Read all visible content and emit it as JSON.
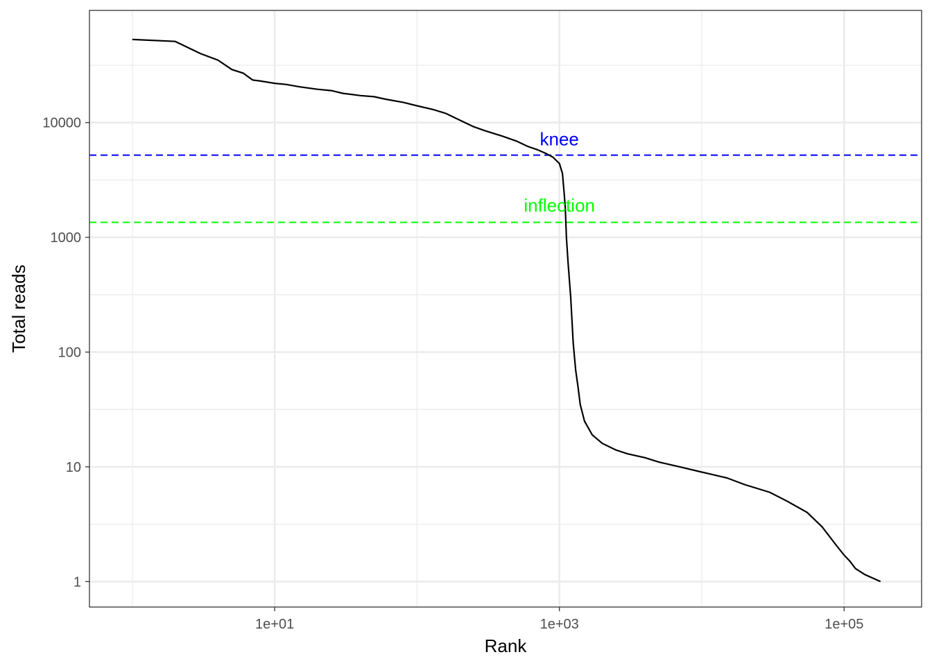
{
  "chart_data": {
    "type": "line",
    "title": "",
    "xlabel": "Rank",
    "ylabel": "Total reads",
    "x_scale": "log10",
    "y_scale": "log10",
    "xlim": [
      0.5,
      350000
    ],
    "ylim": [
      0.6,
      95000
    ],
    "x_ticks": [
      {
        "value": 10,
        "label": "1e+01"
      },
      {
        "value": 1000,
        "label": "1e+03"
      },
      {
        "value": 100000,
        "label": "1e+05"
      }
    ],
    "y_ticks": [
      {
        "value": 1,
        "label": "1"
      },
      {
        "value": 10,
        "label": "10"
      },
      {
        "value": 100,
        "label": "100"
      },
      {
        "value": 1000,
        "label": "1000"
      },
      {
        "value": 10000,
        "label": "10000"
      }
    ],
    "grid": true,
    "legend": "none",
    "colors": {
      "curve": "#000000",
      "knee": "#0000ff",
      "inflection": "#00ff00",
      "panel_border": "#333333",
      "grid": "#ebebeb"
    },
    "series": [
      {
        "x": [
          1,
          2,
          3,
          4,
          5,
          6,
          7,
          8,
          10,
          12,
          15,
          20,
          25,
          30,
          40,
          50,
          60,
          80,
          100,
          130,
          160,
          200,
          250,
          300,
          400,
          500,
          600,
          700,
          800,
          900,
          1000,
          1050,
          1080,
          1100,
          1120,
          1150,
          1200,
          1250,
          1300,
          1350,
          1400,
          1500,
          1700,
          2000,
          2500,
          3000,
          4000,
          5000,
          7000,
          10000,
          15000,
          20000,
          30000,
          40000,
          55000,
          70000,
          90000,
          100000,
          110000,
          120000,
          140000,
          180000
        ],
        "y": [
          53000,
          51000,
          40000,
          35000,
          29000,
          27000,
          23500,
          23000,
          22000,
          21500,
          20500,
          19500,
          19000,
          18000,
          17200,
          16800,
          16000,
          15000,
          14000,
          13000,
          12000,
          10500,
          9200,
          8500,
          7600,
          6900,
          6200,
          5800,
          5400,
          5000,
          4400,
          3600,
          2400,
          1800,
          1000,
          600,
          300,
          120,
          70,
          50,
          35,
          25,
          19,
          16,
          14,
          13,
          12,
          11,
          10,
          9,
          8,
          7,
          6,
          5,
          4,
          3,
          2,
          1.7,
          1.5,
          1.3,
          1.15,
          1
        ]
      }
    ],
    "hlines": [
      {
        "name": "knee",
        "value": 5200
      },
      {
        "name": "inflection",
        "value": 1350
      }
    ],
    "annotations": [
      {
        "text": "knee",
        "x": 1000,
        "y": 7200
      },
      {
        "text": "inflection",
        "x": 1000,
        "y": 1900
      }
    ]
  }
}
